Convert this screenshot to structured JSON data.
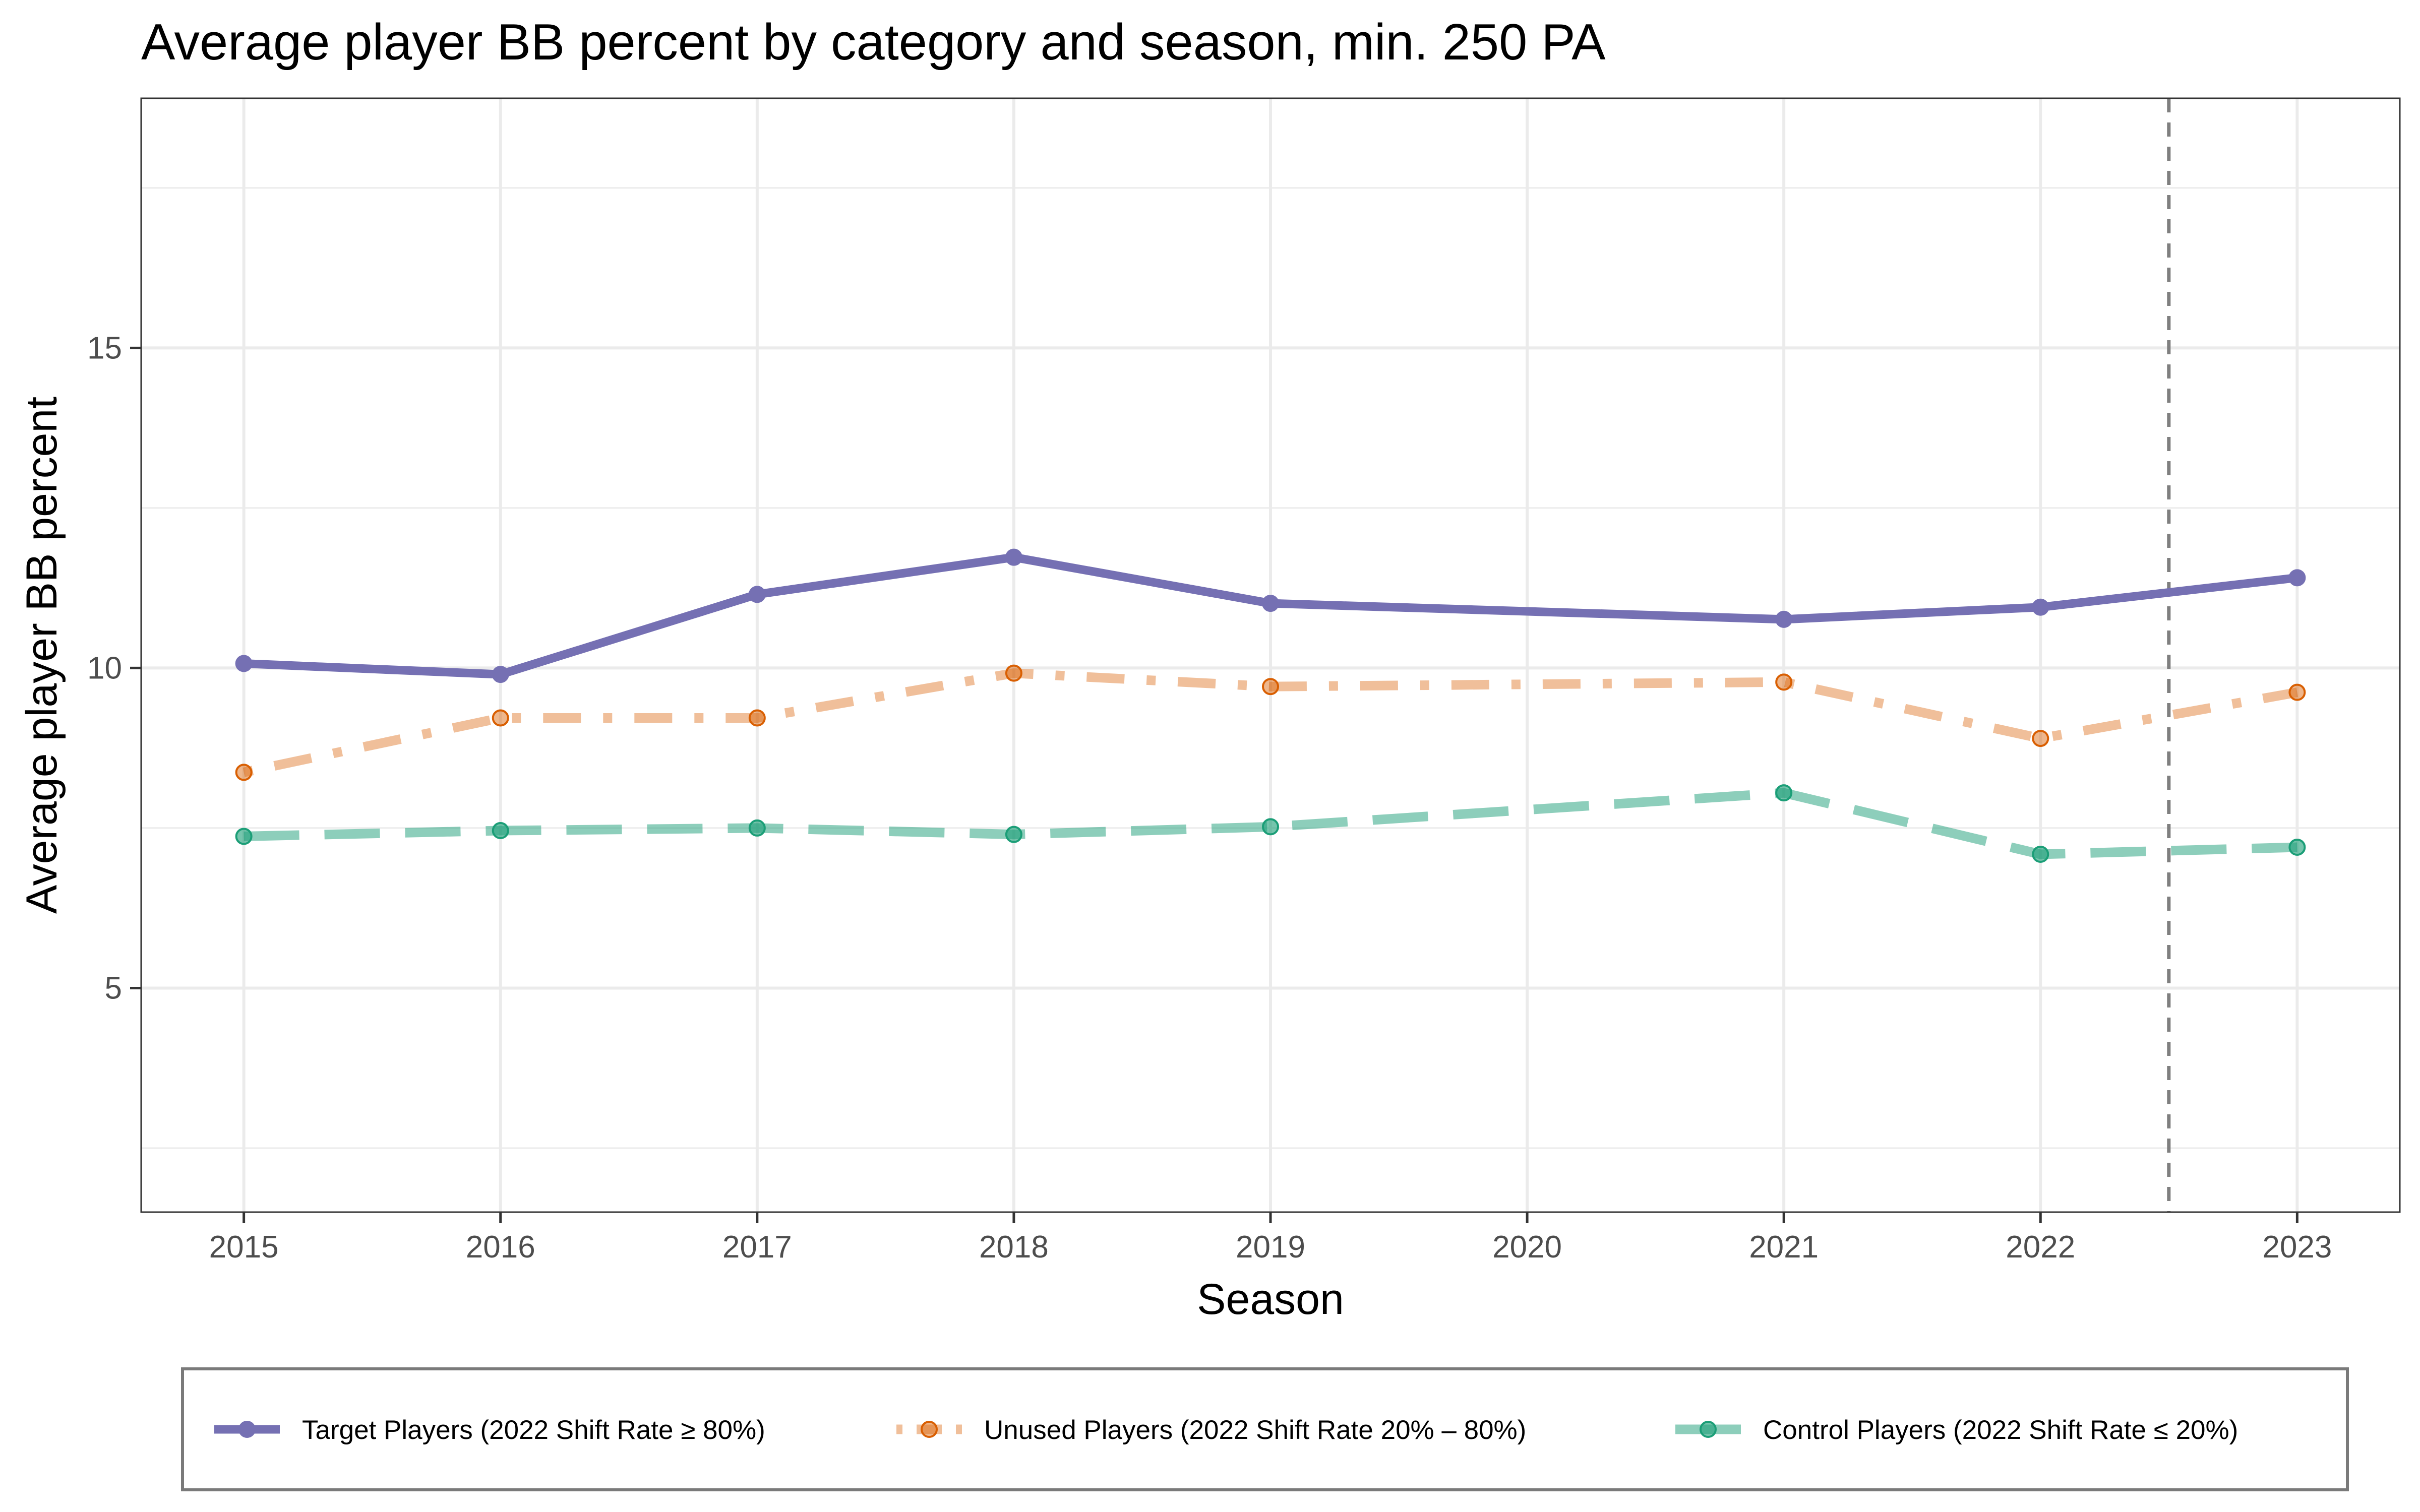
{
  "chart_data": {
    "type": "line",
    "title": "Average player BB percent by category and season, min. 250 PA",
    "xlabel": "Season",
    "ylabel": "Average player BB percent",
    "x": [
      2015,
      2016,
      2017,
      2018,
      2019,
      2020,
      2021,
      2022,
      2023
    ],
    "xlim": [
      2014.6,
      2023.4
    ],
    "ylim": [
      1.5,
      18.9
    ],
    "y_ticks": [
      5,
      10,
      15
    ],
    "grid": true,
    "legend_position": "bottom",
    "reference_line": {
      "x": 2022.5,
      "style": "dashed",
      "color": "#7f7f7f"
    },
    "series": [
      {
        "name": "Target Players (2022 Shift Rate ≥ 80%)",
        "color": "#7570b3",
        "line_style": "solid",
        "values": [
          10.07,
          9.9,
          11.15,
          11.73,
          11.01,
          null,
          10.76,
          10.95,
          11.41
        ]
      },
      {
        "name": "Unused Players (2022 Shift Rate 20% – 80%)",
        "color": "#d95f02",
        "line_style": "dotdash",
        "values": [
          8.37,
          9.22,
          9.22,
          9.92,
          9.71,
          null,
          9.78,
          8.9,
          9.62
        ]
      },
      {
        "name": "Control Players (2022 Shift Rate ≤ 20%)",
        "color": "#1b9e77",
        "line_style": "longdash",
        "values": [
          7.37,
          7.46,
          7.5,
          7.4,
          7.52,
          null,
          8.05,
          7.09,
          7.2
        ]
      }
    ]
  }
}
